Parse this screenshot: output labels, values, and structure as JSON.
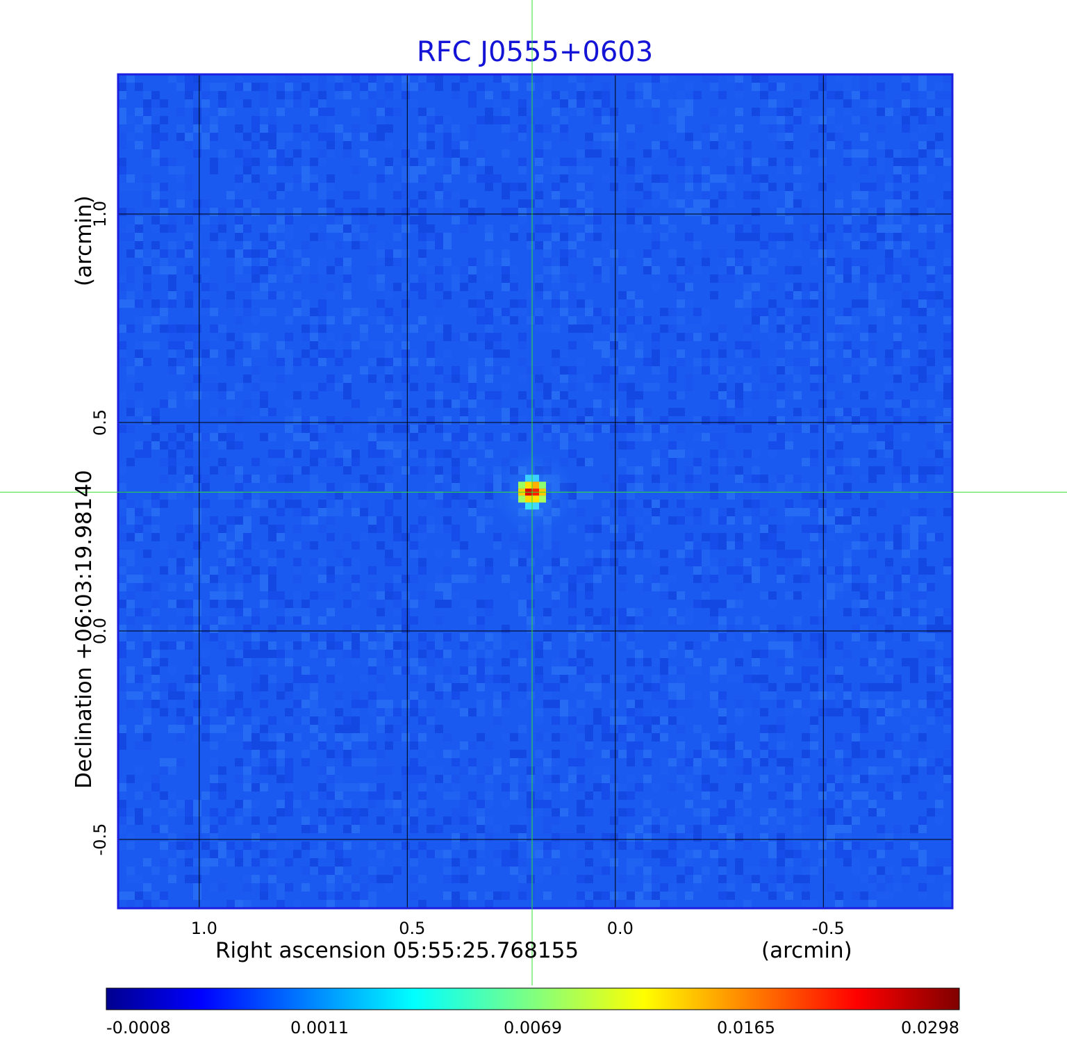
{
  "chart_data": {
    "type": "heatmap",
    "title": "RFC J0555+0603",
    "xlabel": "Right ascension  05:55:25.768155",
    "xunit": "(arcmin)",
    "ylabel": "Declination  +06:03:19.98140",
    "yunit": "(arcmin)",
    "xlim": [
      1.195,
      -0.81
    ],
    "ylim": [
      -0.665,
      1.335
    ],
    "x_ticks": [
      {
        "value": 1.0,
        "label": "1.0"
      },
      {
        "value": 0.5,
        "label": "0.5"
      },
      {
        "value": 0.0,
        "label": "0.0"
      },
      {
        "value": -0.5,
        "label": "-0.5"
      }
    ],
    "y_ticks": [
      {
        "value": 1.0,
        "label": "1.0"
      },
      {
        "value": 0.5,
        "label": "0.5"
      },
      {
        "value": 0.0,
        "label": "0.0"
      },
      {
        "value": -0.5,
        "label": "-0.5"
      }
    ],
    "grid": true,
    "crosshair": {
      "x": 0.2,
      "y": 0.333
    },
    "source": {
      "x": 0.2,
      "y": 0.333,
      "peak": 0.0298
    },
    "colorbar": {
      "colormap": "jet",
      "orientation": "horizontal",
      "ticks": [
        "-0.0008",
        "0.0011",
        "0.0069",
        "0.0165",
        "0.0298"
      ]
    }
  }
}
